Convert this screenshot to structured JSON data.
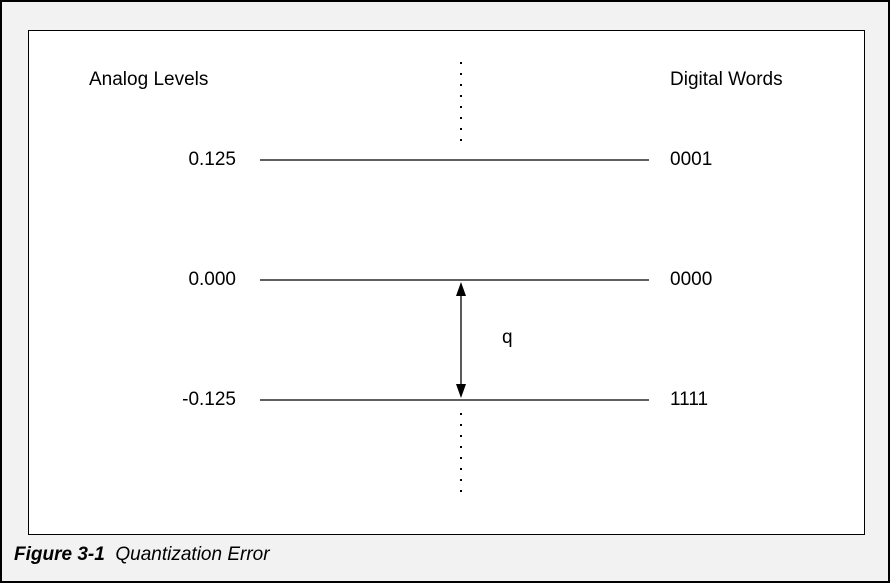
{
  "diagram": {
    "left_heading": "Analog Levels",
    "right_heading": "Digital Words",
    "levels": [
      {
        "analog": "0.125",
        "digital": "0001"
      },
      {
        "analog": "0.000",
        "digital": "0000"
      },
      {
        "analog": "-0.125",
        "digital": "1111"
      }
    ],
    "step_label": "q"
  },
  "caption": {
    "figure_number": "Figure 3-1",
    "title": "Quantization Error"
  }
}
